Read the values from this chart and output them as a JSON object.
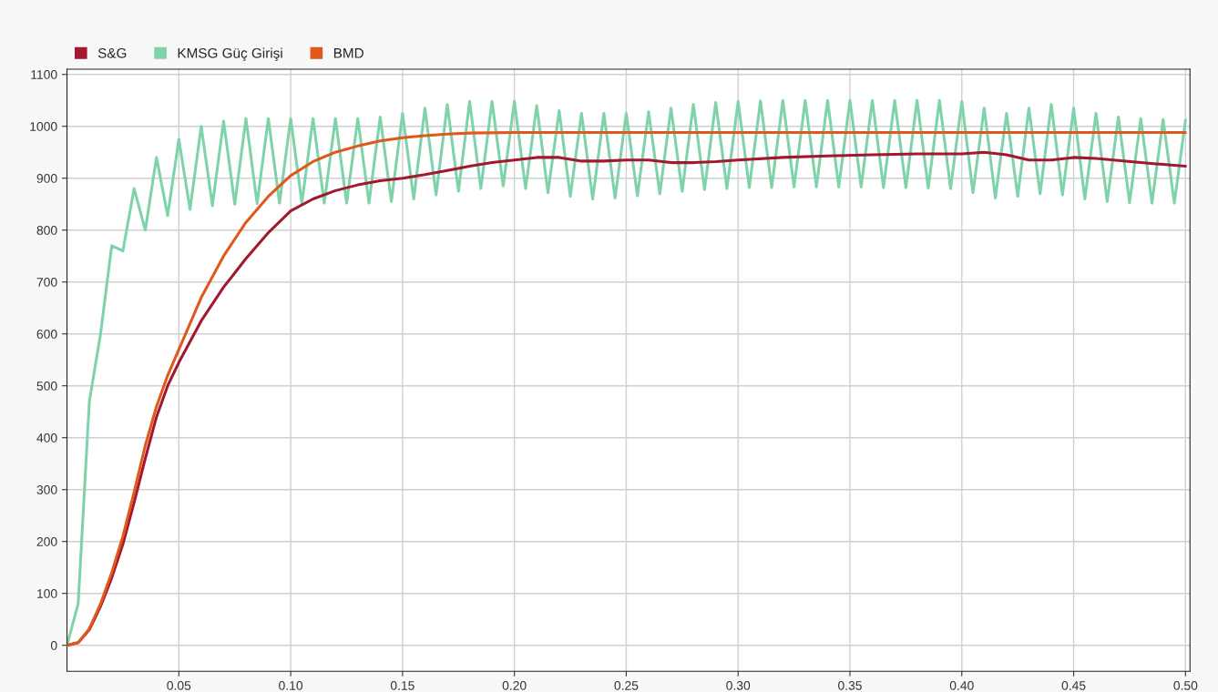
{
  "chart_data": {
    "type": "line",
    "xlim": [
      0,
      0.502
    ],
    "ylim": [
      -50,
      1110
    ],
    "xticks": [
      {
        "value": 0.05,
        "label": "0.05"
      },
      {
        "value": 0.1,
        "label": "0.10"
      },
      {
        "value": 0.15,
        "label": "0.15"
      },
      {
        "value": 0.2,
        "label": "0.20"
      },
      {
        "value": 0.25,
        "label": "0.25"
      },
      {
        "value": 0.3,
        "label": "0.30"
      },
      {
        "value": 0.35,
        "label": "0.35"
      },
      {
        "value": 0.4,
        "label": "0.40"
      },
      {
        "value": 0.45,
        "label": "0.45"
      },
      {
        "value": 0.5,
        "label": "0.50"
      }
    ],
    "yticks": [
      0,
      100,
      200,
      300,
      400,
      500,
      600,
      700,
      800,
      900,
      1000,
      1100
    ],
    "grid": true,
    "legend": "top left",
    "marker": "none",
    "line_style": "solid",
    "series": [
      {
        "name": "S&G",
        "color": "#a3182f",
        "x": [
          0,
          0.005,
          0.01,
          0.015,
          0.02,
          0.025,
          0.03,
          0.035,
          0.04,
          0.045,
          0.05,
          0.06,
          0.07,
          0.08,
          0.09,
          0.1,
          0.11,
          0.12,
          0.13,
          0.14,
          0.15,
          0.16,
          0.17,
          0.18,
          0.19,
          0.2,
          0.21,
          0.22,
          0.23,
          0.24,
          0.25,
          0.26,
          0.27,
          0.28,
          0.29,
          0.3,
          0.32,
          0.34,
          0.36,
          0.38,
          0.4,
          0.41,
          0.42,
          0.43,
          0.44,
          0.45,
          0.46,
          0.48,
          0.5
        ],
        "values": [
          0,
          5,
          30,
          75,
          130,
          195,
          275,
          360,
          440,
          500,
          545,
          625,
          690,
          745,
          795,
          837,
          860,
          876,
          887,
          895,
          900,
          907,
          915,
          923,
          930,
          935,
          940,
          940,
          933,
          933,
          935,
          935,
          930,
          930,
          932,
          935,
          940,
          943,
          945,
          947,
          947,
          950,
          945,
          935,
          935,
          940,
          938,
          930,
          923
        ]
      },
      {
        "name": "KMSG Güç Girişi",
        "color": "#7fd3aa",
        "x": [
          0,
          0.005,
          0.01,
          0.015,
          0.02,
          0.025,
          0.03,
          0.035,
          0.04,
          0.045,
          0.05,
          0.055,
          0.06,
          0.065,
          0.07,
          0.075,
          0.08,
          0.085,
          0.09,
          0.095,
          0.1,
          0.105,
          0.11,
          0.115,
          0.12,
          0.125,
          0.13,
          0.135,
          0.14,
          0.145,
          0.15,
          0.155,
          0.16,
          0.165,
          0.17,
          0.175,
          0.18,
          0.185,
          0.19,
          0.195,
          0.2,
          0.205,
          0.21,
          0.215,
          0.22,
          0.225,
          0.23,
          0.235,
          0.24,
          0.245,
          0.25,
          0.255,
          0.26,
          0.265,
          0.27,
          0.275,
          0.28,
          0.285,
          0.29,
          0.295,
          0.3,
          0.305,
          0.31,
          0.315,
          0.32,
          0.325,
          0.33,
          0.335,
          0.34,
          0.345,
          0.35,
          0.355,
          0.36,
          0.365,
          0.37,
          0.375,
          0.38,
          0.385,
          0.39,
          0.395,
          0.4,
          0.405,
          0.41,
          0.415,
          0.42,
          0.425,
          0.43,
          0.435,
          0.44,
          0.445,
          0.45,
          0.455,
          0.46,
          0.465,
          0.47,
          0.475,
          0.48,
          0.485,
          0.49,
          0.495,
          0.5
        ],
        "values": [
          0,
          80,
          470,
          600,
          770,
          760,
          880,
          800,
          940,
          828,
          975,
          840,
          1000,
          847,
          1010,
          850,
          1015,
          851,
          1015,
          852,
          1015,
          852,
          1015,
          852,
          1015,
          852,
          1015,
          852,
          1018,
          855,
          1025,
          860,
          1035,
          868,
          1042,
          875,
          1048,
          880,
          1048,
          885,
          1048,
          880,
          1040,
          872,
          1030,
          865,
          1025,
          860,
          1025,
          862,
          1025,
          866,
          1028,
          870,
          1035,
          875,
          1042,
          878,
          1046,
          880,
          1048,
          882,
          1049,
          882,
          1050,
          883,
          1050,
          883,
          1050,
          883,
          1050,
          883,
          1050,
          882,
          1050,
          882,
          1050,
          881,
          1050,
          880,
          1048,
          872,
          1035,
          862,
          1025,
          865,
          1035,
          870,
          1042,
          868,
          1035,
          860,
          1025,
          855,
          1018,
          853,
          1015,
          852,
          1013,
          852,
          1012
        ]
      },
      {
        "name": "BMD",
        "color": "#e0581c",
        "x": [
          0,
          0.005,
          0.01,
          0.015,
          0.02,
          0.025,
          0.03,
          0.035,
          0.04,
          0.045,
          0.05,
          0.06,
          0.07,
          0.08,
          0.09,
          0.1,
          0.11,
          0.12,
          0.13,
          0.14,
          0.15,
          0.16,
          0.17,
          0.18,
          0.2,
          0.25,
          0.3,
          0.35,
          0.4,
          0.45,
          0.5
        ],
        "values": [
          0,
          5,
          32,
          80,
          140,
          210,
          295,
          385,
          460,
          520,
          570,
          670,
          750,
          815,
          865,
          905,
          932,
          950,
          962,
          972,
          978,
          982,
          985,
          987,
          988,
          988,
          988,
          988,
          988,
          988,
          988
        ]
      }
    ]
  }
}
